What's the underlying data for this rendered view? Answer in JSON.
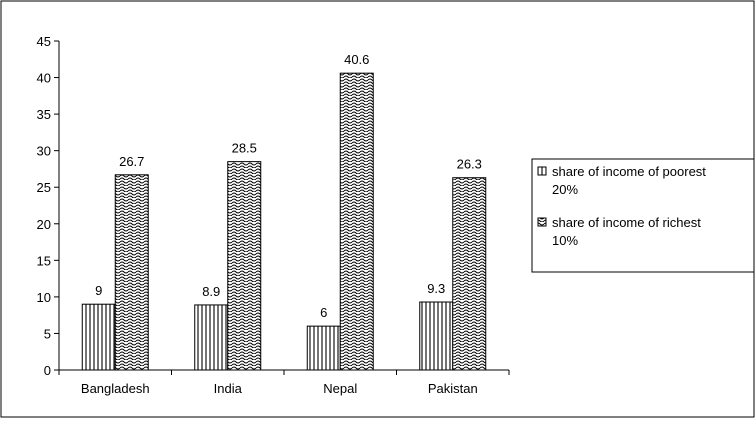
{
  "chart_data": {
    "type": "bar",
    "categories": [
      "Bangladesh",
      "India",
      "Nepal",
      "Pakistan"
    ],
    "series": [
      {
        "name": "share of income of poorest 20%",
        "values": [
          9,
          8.9,
          6,
          9.3
        ],
        "pattern": "vertical-lines"
      },
      {
        "name": "share of income of richest 10%",
        "values": [
          26.7,
          28.5,
          40.6,
          26.3
        ],
        "pattern": "wave"
      }
    ],
    "data_labels": [
      [
        "9",
        "8.9",
        "6",
        "9.3"
      ],
      [
        "26.7",
        "28.5",
        "40.6",
        "26.3"
      ]
    ],
    "y_ticks": [
      "0",
      "5",
      "10",
      "15",
      "20",
      "25",
      "30",
      "35",
      "40",
      "45"
    ],
    "ylim": [
      0,
      45
    ],
    "ystep": 5,
    "title": "",
    "xlabel": "",
    "ylabel": "",
    "grid": false,
    "legend_position": "right",
    "legend_lines": [
      [
        "share of income of poorest",
        "20%"
      ],
      [
        "share of income of richest",
        "10%"
      ]
    ],
    "colors": {
      "bar_fill": "#ffffff",
      "bar_stroke": "#000000",
      "axis": "#000000",
      "border": "#000000"
    }
  }
}
